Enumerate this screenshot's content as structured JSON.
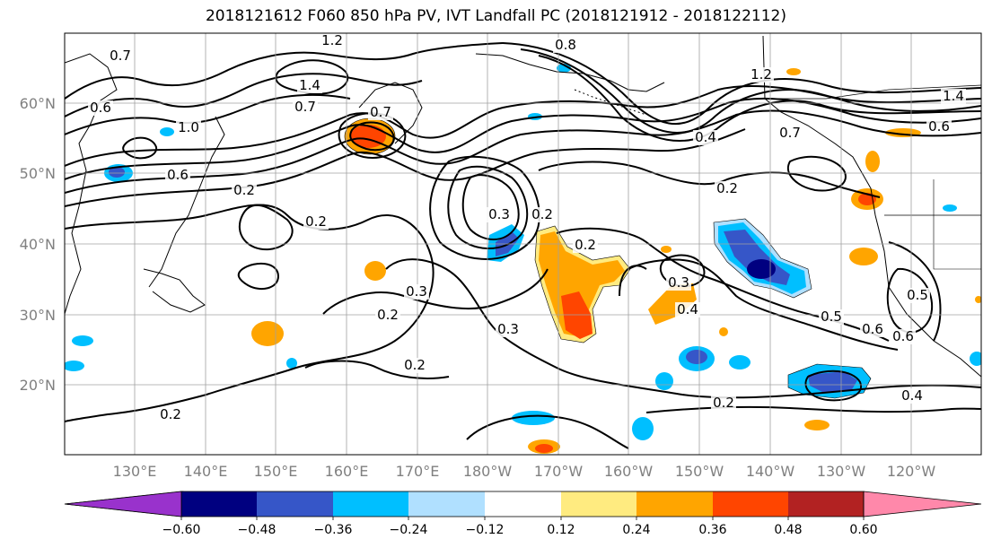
{
  "title": "2018121612 F060 850 hPa PV, IVT Landfall PC (2018121912 - 2018122112)",
  "lat_labels": [
    "60°N",
    "50°N",
    "40°N",
    "30°N",
    "20°N"
  ],
  "lon_labels": [
    "130°E",
    "140°E",
    "150°E",
    "160°E",
    "170°E",
    "180°W",
    "170°W",
    "160°W",
    "150°W",
    "140°W",
    "130°W",
    "120°W"
  ],
  "colorbar": {
    "ticks": [
      "−0.60",
      "−0.48",
      "−0.36",
      "−0.24",
      "−0.12",
      "0.12",
      "0.24",
      "0.36",
      "0.48",
      "0.60"
    ],
    "colors": [
      "#9932cc",
      "#000080",
      "#3656c8",
      "#00bfff",
      "#b0e0ff",
      "#ffffff",
      "#ffeb80",
      "#ffa500",
      "#ff4500",
      "#b22222",
      "#ff88aa"
    ]
  },
  "contour_labels": [
    "0.7",
    "1.2",
    "1.4",
    "0.7",
    "1.0",
    "0.6",
    "0.6",
    "0.2",
    "0.2",
    "0.7",
    "0.8",
    "0.4",
    "0.2",
    "1.2",
    "0.7",
    "1.4",
    "0.6",
    "0.2",
    "0.3",
    "0.3",
    "0.3",
    "0.2",
    "0.3",
    "0.2",
    "0.4",
    "0.5",
    "0.6",
    "0.6",
    "0.5",
    "0.2",
    "0.2",
    "0.4",
    "0.2"
  ]
}
